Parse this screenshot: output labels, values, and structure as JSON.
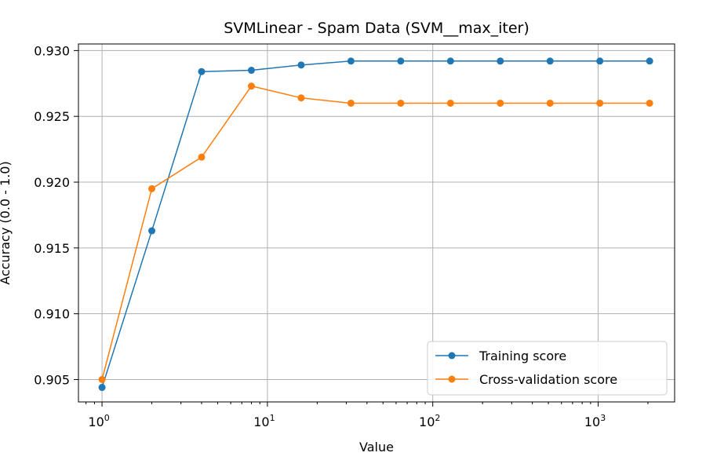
{
  "chart_data": {
    "type": "line",
    "title": "SVMLinear - Spam Data (SVM__max_iter)",
    "xlabel": "Value",
    "ylabel": "Accuracy (0.0 - 1.0)",
    "xscale": "log",
    "x": [
      1,
      2,
      4,
      8,
      16,
      32,
      64,
      128,
      256,
      512,
      1024,
      2048
    ],
    "xlim": [
      0.72,
      2900
    ],
    "ylim": [
      0.9033,
      0.9305
    ],
    "xticks": [
      {
        "value": 1,
        "base": "10",
        "exp": "0"
      },
      {
        "value": 10,
        "base": "10",
        "exp": "1"
      },
      {
        "value": 100,
        "base": "10",
        "exp": "2"
      },
      {
        "value": 1000,
        "base": "10",
        "exp": "3"
      }
    ],
    "yticks": [
      0.905,
      0.91,
      0.915,
      0.92,
      0.925,
      0.93
    ],
    "ytick_labels": [
      "0.905",
      "0.910",
      "0.915",
      "0.920",
      "0.925",
      "0.930"
    ],
    "grid": true,
    "legend_position": "lower-right",
    "series": [
      {
        "name": "Training score",
        "color": "#1f77b4",
        "values": [
          0.9044,
          0.9163,
          0.9284,
          0.9285,
          0.9289,
          0.9292,
          0.9292,
          0.9292,
          0.9292,
          0.9292,
          0.9292,
          0.9292
        ]
      },
      {
        "name": "Cross-validation score",
        "color": "#ff7f0e",
        "values": [
          0.905,
          0.9195,
          0.9219,
          0.9273,
          0.9264,
          0.926,
          0.926,
          0.926,
          0.926,
          0.926,
          0.926,
          0.926
        ]
      }
    ]
  }
}
